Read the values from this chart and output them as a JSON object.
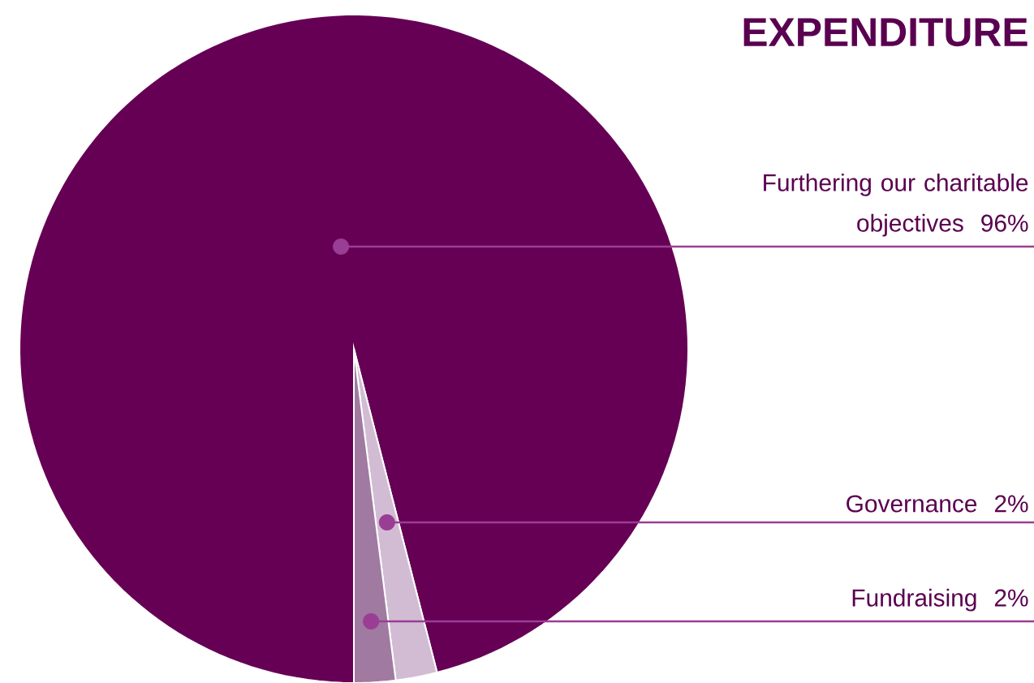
{
  "chart_data": {
    "type": "pie",
    "title": "EXPENDITURE",
    "categories": [
      "Furthering our charitable objectives",
      "Governance",
      "Fundraising"
    ],
    "values": [
      96,
      2,
      2
    ],
    "value_labels": [
      "96%",
      "2%",
      "2%"
    ],
    "colors": [
      "#660055",
      "#d2bcd4",
      "#a07aa1"
    ]
  }
}
